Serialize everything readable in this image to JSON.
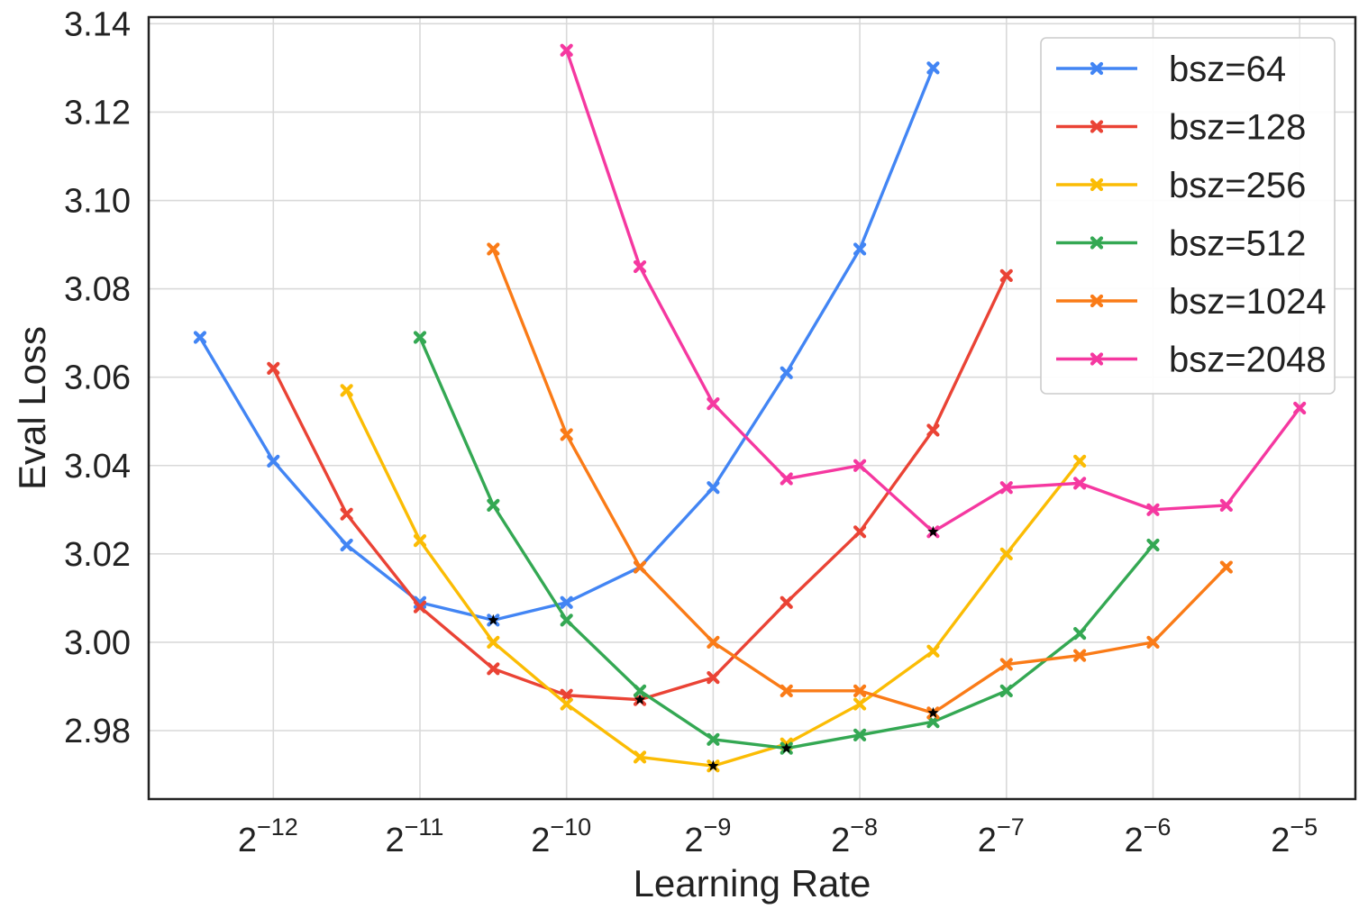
{
  "chart_data": {
    "type": "line",
    "title": "",
    "xlabel": "Learning Rate",
    "ylabel": "Eval Loss",
    "x_scale": "log2",
    "x_tick_exponents": [
      -12,
      -11,
      -10,
      -9,
      -8,
      -7,
      -6,
      -5
    ],
    "x_tick_base": "2",
    "xlim_log2": [
      -12.85,
      -4.62
    ],
    "y_ticks": [
      "2.98",
      "3.00",
      "3.02",
      "3.04",
      "3.06",
      "3.08",
      "3.10",
      "3.12",
      "3.14"
    ],
    "ylim": [
      2.9645,
      3.1415
    ],
    "grid": true,
    "legend_placement": "top-right",
    "series": [
      {
        "name": "bsz=64",
        "color": "#4285f4",
        "x_log2": [
          -12.5,
          -12,
          -11.5,
          -11,
          -10.5,
          -10,
          -9.5,
          -9,
          -8.5,
          -8,
          -7.5
        ],
        "values": [
          3.069,
          3.041,
          3.022,
          3.009,
          3.005,
          3.009,
          3.017,
          3.035,
          3.061,
          3.089,
          3.13
        ],
        "best_index": 4
      },
      {
        "name": "bsz=128",
        "color": "#ea4335",
        "x_log2": [
          -12,
          -11.5,
          -11,
          -10.5,
          -10,
          -9.5,
          -9,
          -8.5,
          -8,
          -7.5,
          -7
        ],
        "values": [
          3.062,
          3.029,
          3.008,
          2.994,
          2.988,
          2.987,
          2.992,
          3.009,
          3.025,
          3.048,
          3.083
        ],
        "best_index": 5
      },
      {
        "name": "bsz=256",
        "color": "#fbbc04",
        "x_log2": [
          -11.5,
          -11,
          -10.5,
          -10,
          -9.5,
          -9,
          -8.5,
          -8,
          -7.5,
          -7,
          -6.5
        ],
        "values": [
          3.057,
          3.023,
          3.0,
          2.986,
          2.974,
          2.972,
          2.977,
          2.986,
          2.998,
          3.02,
          3.041
        ],
        "best_index": 5
      },
      {
        "name": "bsz=512",
        "color": "#34a853",
        "x_log2": [
          -11,
          -10.5,
          -10,
          -9.5,
          -9,
          -8.5,
          -8,
          -7.5,
          -7,
          -6.5,
          -6
        ],
        "values": [
          3.069,
          3.031,
          3.005,
          2.989,
          2.978,
          2.976,
          2.979,
          2.982,
          2.989,
          3.002,
          3.022
        ],
        "best_index": 5
      },
      {
        "name": "bsz=1024",
        "color": "#fa7b17",
        "x_log2": [
          -10.5,
          -10,
          -9.5,
          -9,
          -8.5,
          -8,
          -7.5,
          -7,
          -6.5,
          -6,
          -5.5
        ],
        "values": [
          3.089,
          3.047,
          3.017,
          3.0,
          2.989,
          2.989,
          2.984,
          2.995,
          2.997,
          3.0,
          3.017
        ],
        "best_index": 6
      },
      {
        "name": "bsz=2048",
        "color": "#f538a0",
        "x_log2": [
          -10,
          -9.5,
          -9,
          -8.5,
          -8,
          -7.5,
          -7,
          -6.5,
          -6,
          -5.5,
          -5
        ],
        "values": [
          3.134,
          3.085,
          3.054,
          3.037,
          3.04,
          3.025,
          3.035,
          3.036,
          3.03,
          3.031,
          3.053
        ],
        "best_index": 5
      }
    ]
  }
}
